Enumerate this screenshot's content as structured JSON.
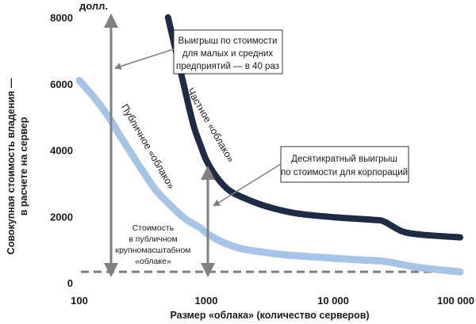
{
  "chart_data": {
    "type": "line",
    "y_unit": "долл.",
    "ylabel": [
      "Совокупная стоимость владения —",
      "в расчете на сервер"
    ],
    "xlabel": "Размер «облака» (количество серверов)",
    "x_scale": "log",
    "xlim": [
      100,
      100000
    ],
    "ylim": [
      0,
      8000
    ],
    "x_ticks": [
      100,
      1000,
      10000,
      100000
    ],
    "x_tick_labels": [
      "100",
      "1000",
      "10 000",
      "100 000"
    ],
    "y_ticks": [
      0,
      2000,
      4000,
      6000,
      8000
    ],
    "y_tick_labels": [
      "0",
      "2000",
      "4000",
      "6000",
      "8000"
    ],
    "grid": false,
    "series": [
      {
        "name": "Частное «облако»",
        "color": "#1f2a44",
        "points": [
          [
            500,
            8000
          ],
          [
            600,
            6700
          ],
          [
            700,
            5600
          ],
          [
            800,
            4700
          ],
          [
            900,
            4150
          ],
          [
            1000,
            3700
          ],
          [
            1200,
            3200
          ],
          [
            1500,
            2800
          ],
          [
            2000,
            2550
          ],
          [
            3000,
            2300
          ],
          [
            5000,
            2100
          ],
          [
            10000,
            1980
          ],
          [
            20000,
            1900
          ],
          [
            25000,
            1850
          ],
          [
            35000,
            1550
          ],
          [
            50000,
            1450
          ],
          [
            100000,
            1370
          ]
        ]
      },
      {
        "name": "Публичное «облако»",
        "color": "#a7c3e6",
        "points": [
          [
            100,
            6100
          ],
          [
            130,
            5600
          ],
          [
            170,
            5000
          ],
          [
            220,
            4300
          ],
          [
            300,
            3500
          ],
          [
            400,
            2800
          ],
          [
            550,
            2250
          ],
          [
            700,
            1900
          ],
          [
            900,
            1650
          ],
          [
            1000,
            1500
          ],
          [
            1300,
            1250
          ],
          [
            1800,
            1050
          ],
          [
            2500,
            950
          ],
          [
            4000,
            850
          ],
          [
            7000,
            780
          ],
          [
            15000,
            700
          ],
          [
            25000,
            650
          ],
          [
            35000,
            550
          ],
          [
            50000,
            450
          ],
          [
            100000,
            330
          ]
        ]
      }
    ],
    "baseline": {
      "name": "Стоимость в публичном крупномасштабном «облаке»",
      "value": 330,
      "color": "#808080"
    },
    "annotations": {
      "large_win": [
        "Выигрыш по стоимости",
        "для малых и средних",
        "предприятий — в 40 раз"
      ],
      "ten_fold": [
        "Десятикратный выигрыш",
        "по стоимости для корпораций"
      ],
      "baseline_note": [
        "Стоимость",
        "в публичном",
        "крупномасштабном",
        "«облаке»"
      ]
    },
    "series_labels": {
      "private": "Частное «облако»",
      "public": "Публичное «облако»"
    }
  }
}
